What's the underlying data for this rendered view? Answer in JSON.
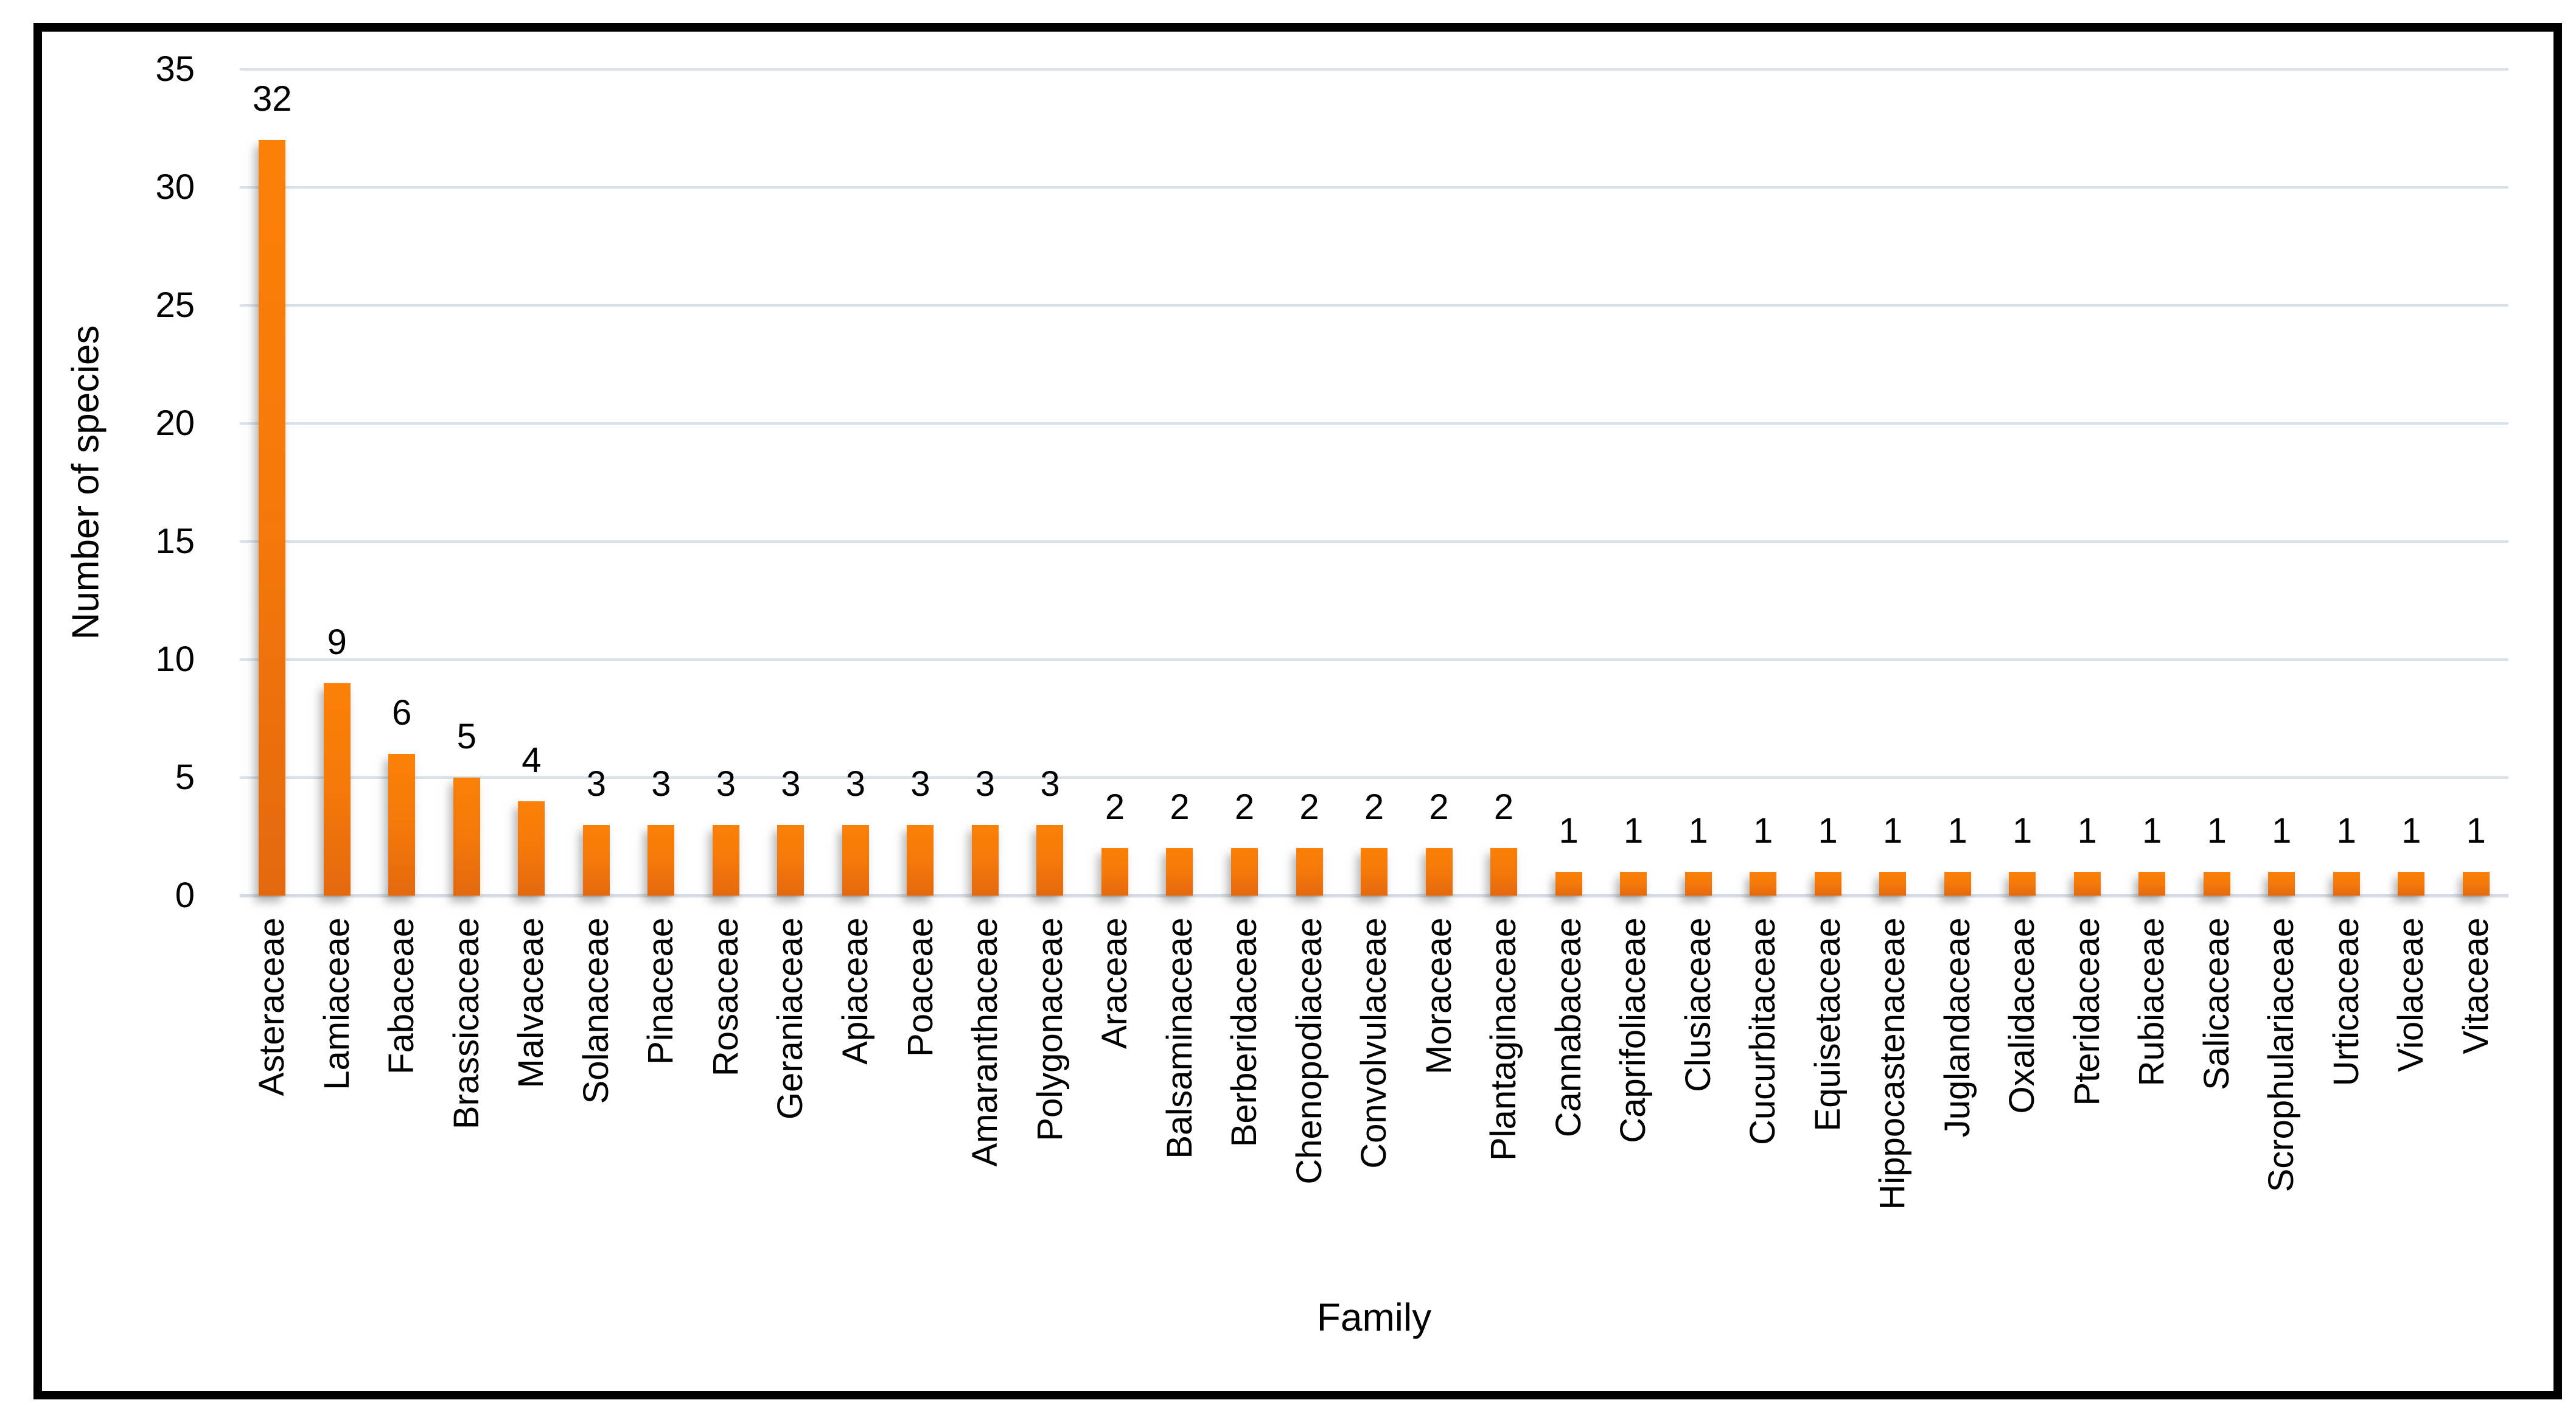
{
  "chart_data": {
    "type": "bar",
    "title": "",
    "xlabel": "Family",
    "ylabel": "Number of species",
    "categories": [
      "Asteraceae",
      "Lamiaceae",
      "Fabaceae",
      "Brassicaceae",
      "Malvaceae",
      "Solanaceae",
      "Pinaceae",
      "Rosaceae",
      "Geraniaceae",
      "Apiaceae",
      "Poaceae",
      "Amaranthaceae",
      "Polygonaceae",
      "Araceae",
      "Balsaminaceae",
      "Berberidaceae",
      "Chenopodiaceae",
      "Convolvulaceae",
      "Moraceae",
      "Plantaginaceae",
      "Cannabaceae",
      "Caprifoliaceae",
      "Clusiaceae",
      "Cucurbitaceae",
      "Equisetaceae",
      "Hippocastenaceae",
      "Juglandaceae",
      "Oxalidaceae",
      "Pteridaceae",
      "Rubiaceae",
      "Salicaceae",
      "Scrophulariaceae",
      "Urticaceae",
      "Violaceae",
      "Vitaceae"
    ],
    "values": [
      32,
      9,
      6,
      5,
      4,
      3,
      3,
      3,
      3,
      3,
      3,
      3,
      3,
      2,
      2,
      2,
      2,
      2,
      2,
      2,
      1,
      1,
      1,
      1,
      1,
      1,
      1,
      1,
      1,
      1,
      1,
      1,
      1,
      1,
      1
    ],
    "data_labels": [
      32,
      9,
      6,
      5,
      4,
      3,
      3,
      3,
      3,
      3,
      3,
      3,
      3,
      2,
      2,
      2,
      2,
      2,
      2,
      2,
      1,
      1,
      1,
      1,
      1,
      1,
      1,
      1,
      1,
      1,
      1,
      1,
      1,
      1,
      1
    ],
    "ylim": [
      0,
      35
    ],
    "yticks": [
      0,
      5,
      10,
      15,
      20,
      25,
      30,
      35
    ],
    "grid": "horizontal",
    "legend": "none",
    "colors": {
      "bar_top": "#FB8008",
      "bar_bottom": "#E4690E",
      "gridline": "#DAE1E9",
      "text": "#000000",
      "frame_border": "#000000",
      "background": "#FFFFFF"
    }
  }
}
